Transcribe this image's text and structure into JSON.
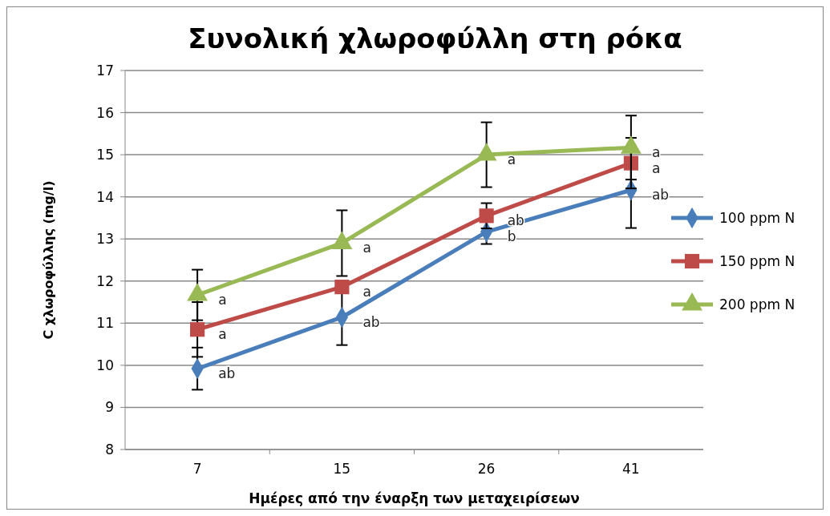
{
  "chart_data": {
    "type": "line",
    "title": "Συνολική χλωροφύλλη στη ρόκα",
    "xlabel": "Ημέρες από την έναρξη των μεταχειρίσεων",
    "ylabel": "C χλωροφύλλης (mg/l)",
    "categories": [
      "7",
      "15",
      "26",
      "41"
    ],
    "series": [
      {
        "name": "100 ppm N",
        "color": "#4a7ebb",
        "marker": "diamond",
        "values": [
          9.92,
          11.14,
          13.17,
          14.16
        ],
        "errors": [
          0.5,
          0.66,
          0.29,
          0.9
        ]
      },
      {
        "name": "150 ppm N",
        "color": "#be4b48",
        "marker": "square",
        "values": [
          10.85,
          11.86,
          13.55,
          14.8
        ],
        "errors": [
          0.65,
          null,
          0.3,
          0.6
        ]
      },
      {
        "name": "200 ppm N",
        "color": "#98b954",
        "marker": "triangle",
        "values": [
          11.67,
          12.9,
          15.0,
          15.17
        ],
        "errors": [
          0.6,
          0.78,
          0.77,
          0.76
        ]
      }
    ],
    "annotations": [
      {
        "text": "ab",
        "x": "7",
        "y": 9.92
      },
      {
        "text": "ab",
        "x": "15",
        "y": 11.14
      },
      {
        "text": "b",
        "x": "26",
        "y": 13.17
      },
      {
        "text": "ab",
        "x": "41",
        "y": 14.16
      },
      {
        "text": "a",
        "x": "7",
        "y": 10.85
      },
      {
        "text": "a",
        "x": "15",
        "y": 11.86
      },
      {
        "text": "ab",
        "x": "26",
        "y": 13.55
      },
      {
        "text": "a",
        "x": "41",
        "y": 14.8
      },
      {
        "text": "a",
        "x": "7",
        "y": 11.67
      },
      {
        "text": "a",
        "x": "15",
        "y": 12.9
      },
      {
        "text": "a",
        "x": "26",
        "y": 15.0
      },
      {
        "text": "a",
        "x": "41",
        "y": 15.17
      }
    ],
    "ylim": [
      8,
      17
    ],
    "yticks": [
      8,
      9,
      10,
      11,
      12,
      13,
      14,
      15,
      16,
      17
    ],
    "grid": "y",
    "legend": "right",
    "line_style": "solid"
  }
}
